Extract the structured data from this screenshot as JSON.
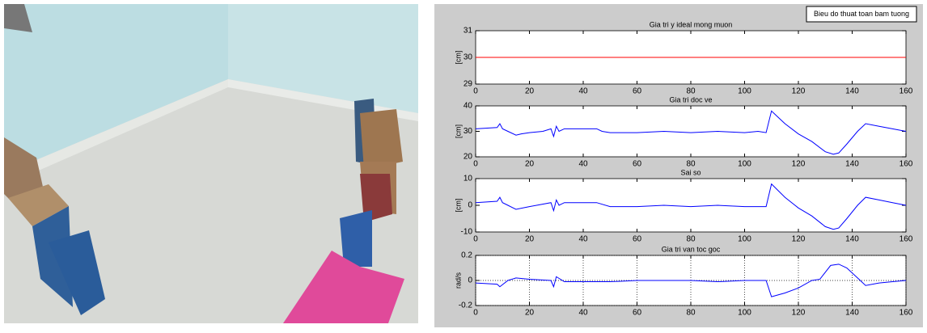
{
  "figure_label": "Bieu do thuat toan bam tuong",
  "chart_data": [
    {
      "type": "line",
      "title": "Gia tri y ideal mong muon",
      "ylabel": "[cm]",
      "color": "#ff0000",
      "x": [
        0,
        160
      ],
      "values": [
        30,
        30
      ],
      "xlim": [
        0,
        160
      ],
      "xticks": [
        0,
        20,
        40,
        60,
        80,
        100,
        120,
        140,
        160
      ],
      "ylim": [
        29,
        31
      ],
      "yticks": [
        29,
        30,
        31
      ],
      "grid": false
    },
    {
      "type": "line",
      "title": "Gia tri doc ve",
      "ylabel": "[cm]",
      "color": "#0000ff",
      "x": [
        0,
        8,
        9,
        10,
        12,
        15,
        17,
        20,
        25,
        28,
        29,
        30,
        31,
        33,
        40,
        45,
        47,
        50,
        60,
        70,
        80,
        90,
        100,
        105,
        108,
        110,
        112,
        115,
        120,
        125,
        130,
        133,
        135,
        138,
        142,
        145,
        150,
        155,
        160
      ],
      "values": [
        31,
        31.5,
        33,
        31,
        30,
        28.5,
        29,
        29.5,
        30,
        31,
        28,
        32,
        30,
        31,
        31,
        31,
        30,
        29.5,
        29.5,
        30,
        29.5,
        30,
        29.5,
        30,
        29.5,
        38,
        36,
        33,
        29,
        26,
        22,
        21,
        21.5,
        25,
        30,
        33,
        32,
        31,
        30
      ],
      "xlim": [
        0,
        160
      ],
      "xticks": [
        0,
        20,
        40,
        60,
        80,
        100,
        120,
        140,
        160
      ],
      "ylim": [
        20,
        40
      ],
      "yticks": [
        20,
        30,
        40
      ],
      "grid": false
    },
    {
      "type": "line",
      "title": "Sai so",
      "ylabel": "[cm]",
      "color": "#0000ff",
      "x": [
        0,
        8,
        9,
        10,
        12,
        15,
        20,
        28,
        29,
        30,
        31,
        33,
        45,
        50,
        60,
        70,
        80,
        90,
        100,
        108,
        110,
        115,
        120,
        125,
        130,
        133,
        135,
        138,
        142,
        145,
        150,
        155,
        160
      ],
      "values": [
        1,
        1.5,
        3,
        1,
        0,
        -1.5,
        -0.5,
        1,
        -2,
        2,
        0,
        1,
        1,
        -0.5,
        -0.5,
        0,
        -0.5,
        0,
        -0.5,
        -0.5,
        8,
        3,
        -1,
        -4,
        -8,
        -9,
        -8.5,
        -5,
        0,
        3,
        2,
        1,
        0
      ],
      "xlim": [
        0,
        160
      ],
      "xticks": [
        0,
        20,
        40,
        60,
        80,
        100,
        120,
        140,
        160
      ],
      "ylim": [
        -10,
        10
      ],
      "yticks": [
        -10,
        0,
        10
      ],
      "grid": false
    },
    {
      "type": "line",
      "title": "Gia tri van toc goc",
      "ylabel": "rad/s",
      "color": "#0000ff",
      "x": [
        0,
        8,
        9,
        12,
        15,
        20,
        28,
        29,
        30,
        33,
        50,
        60,
        80,
        90,
        100,
        108,
        110,
        115,
        120,
        125,
        128,
        132,
        135,
        138,
        142,
        145,
        150,
        155,
        160
      ],
      "values": [
        -0.02,
        -0.03,
        -0.05,
        0,
        0.02,
        0.01,
        0,
        -0.05,
        0.03,
        -0.01,
        -0.01,
        0,
        0,
        -0.01,
        0,
        0,
        -0.13,
        -0.1,
        -0.06,
        0,
        0.01,
        0.12,
        0.13,
        0.1,
        0.02,
        -0.04,
        -0.02,
        -0.01,
        0
      ],
      "xlim": [
        0,
        160
      ],
      "xticks": [
        0,
        20,
        40,
        60,
        80,
        100,
        120,
        140,
        160
      ],
      "ylim": [
        -0.2,
        0.2
      ],
      "yticks": [
        -0.2,
        0,
        0.2
      ],
      "grid": true
    }
  ]
}
